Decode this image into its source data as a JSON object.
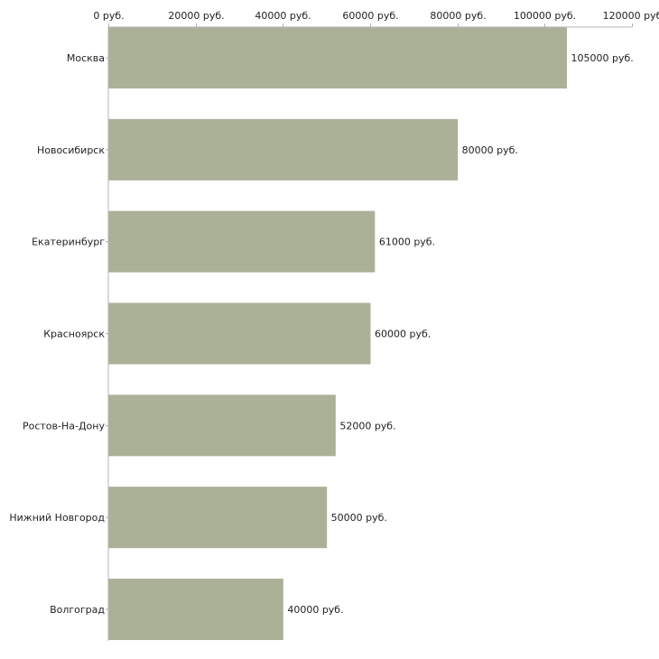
{
  "colors": {
    "bar": "#abb197",
    "axis": "#b4b4b4",
    "text": "#222222"
  },
  "chart_data": {
    "type": "bar",
    "orientation": "horizontal",
    "title": "",
    "xlabel": "",
    "ylabel": "",
    "xlim": [
      0,
      120000
    ],
    "x_ticks": [
      0,
      20000,
      40000,
      60000,
      80000,
      100000,
      120000
    ],
    "x_tick_labels": [
      "0 руб.",
      "20000 руб.",
      "40000 руб.",
      "60000 руб.",
      "80000 руб.",
      "100000 руб.",
      "120000 руб"
    ],
    "x_axis_position": "top",
    "grid": false,
    "legend": "none",
    "categories": [
      "Москва",
      "Новосибирск",
      "Екатеринбург",
      "Красноярск",
      "Ростов-На-Дону",
      "Нижний Новгород",
      "Волгоград"
    ],
    "values": [
      105000,
      80000,
      61000,
      60000,
      52000,
      50000,
      40000
    ],
    "value_labels": [
      "105000 руб.",
      "80000 руб.",
      "61000 руб.",
      "60000 руб.",
      "52000 руб.",
      "50000 руб.",
      "40000 руб."
    ]
  }
}
